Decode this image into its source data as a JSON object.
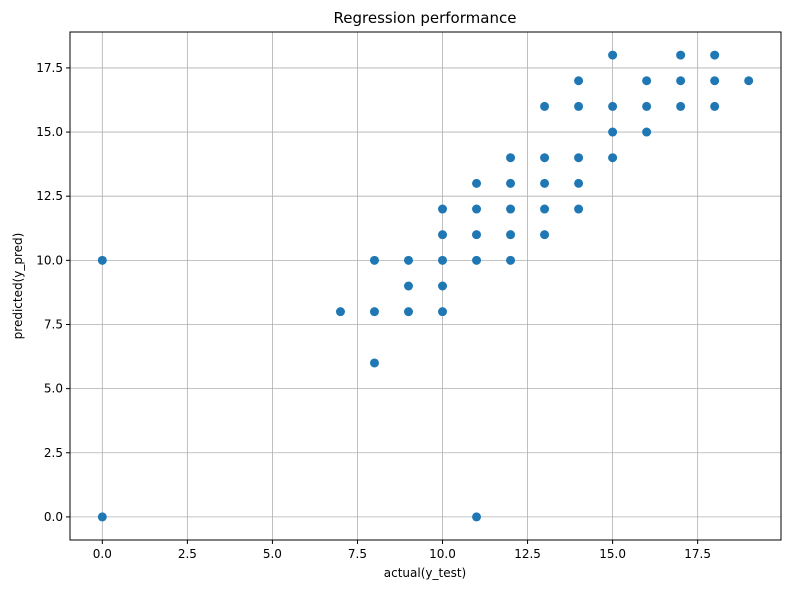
{
  "chart_data": {
    "type": "scatter",
    "title": "Regression performance",
    "xlabel": "actual(y_test)",
    "ylabel": "predicted(y_pred)",
    "xlim": [
      -0.95,
      19.95
    ],
    "ylim": [
      -0.9,
      18.9
    ],
    "x_ticks": [
      0.0,
      2.5,
      5.0,
      7.5,
      10.0,
      12.5,
      15.0,
      17.5
    ],
    "y_ticks": [
      0.0,
      2.5,
      5.0,
      7.5,
      10.0,
      12.5,
      15.0,
      17.5
    ],
    "x_tick_labels": [
      "0.0",
      "2.5",
      "5.0",
      "7.5",
      "10.0",
      "12.5",
      "15.0",
      "17.5"
    ],
    "y_tick_labels": [
      "0.0",
      "2.5",
      "5.0",
      "7.5",
      "10.0",
      "12.5",
      "15.0",
      "17.5"
    ],
    "grid": true,
    "marker_color": "#1f77b4",
    "points": [
      [
        0,
        10
      ],
      [
        0,
        0
      ],
      [
        7,
        8
      ],
      [
        8,
        10
      ],
      [
        8,
        8
      ],
      [
        8,
        6
      ],
      [
        9,
        10
      ],
      [
        9,
        9
      ],
      [
        9,
        8
      ],
      [
        10,
        12
      ],
      [
        10,
        11
      ],
      [
        10,
        10
      ],
      [
        10,
        9
      ],
      [
        10,
        8
      ],
      [
        11,
        13
      ],
      [
        11,
        12
      ],
      [
        11,
        11
      ],
      [
        11,
        10
      ],
      [
        11,
        0
      ],
      [
        12,
        14
      ],
      [
        12,
        13
      ],
      [
        12,
        12
      ],
      [
        12,
        11
      ],
      [
        12,
        10
      ],
      [
        13,
        16
      ],
      [
        13,
        14
      ],
      [
        13,
        13
      ],
      [
        13,
        12
      ],
      [
        13,
        11
      ],
      [
        14,
        17
      ],
      [
        14,
        16
      ],
      [
        14,
        14
      ],
      [
        14,
        13
      ],
      [
        14,
        12
      ],
      [
        15,
        18
      ],
      [
        15,
        16
      ],
      [
        15,
        15
      ],
      [
        15,
        14
      ],
      [
        16,
        17
      ],
      [
        16,
        16
      ],
      [
        16,
        15
      ],
      [
        17,
        18
      ],
      [
        17,
        17
      ],
      [
        17,
        16
      ],
      [
        18,
        18
      ],
      [
        18,
        17
      ],
      [
        18,
        16
      ],
      [
        19,
        17
      ]
    ]
  }
}
